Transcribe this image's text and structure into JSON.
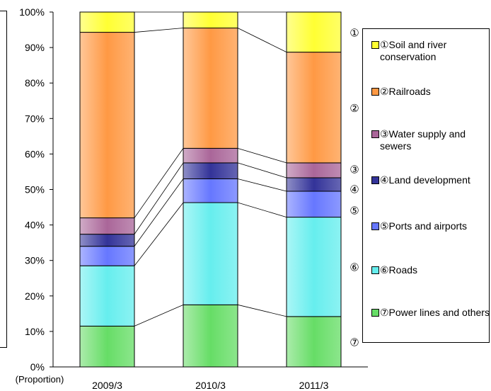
{
  "chart_data": {
    "type": "bar",
    "stacked": true,
    "normalized": true,
    "categories": [
      "2009/3",
      "2010/3",
      "2011/3"
    ],
    "ylim": [
      0,
      100
    ],
    "yticks": [
      "0%",
      "10%",
      "20%",
      "30%",
      "40%",
      "50%",
      "60%",
      "70%",
      "80%",
      "90%",
      "100%"
    ],
    "ylabel": "(Proportion)",
    "series": [
      {
        "name": "⑦Power lines and others",
        "marker": "⑦",
        "color": "#66DD66",
        "values": [
          11.5,
          17.5,
          14.2
        ]
      },
      {
        "name": "⑥Roads",
        "marker": "⑥",
        "color": "#66EEEE",
        "values": [
          17.0,
          28.8,
          28.0
        ]
      },
      {
        "name": "⑤Ports and airports",
        "marker": "⑤",
        "color": "#6677FF",
        "values": [
          5.5,
          6.7,
          7.3
        ]
      },
      {
        "name": "④Land development",
        "marker": "④",
        "color": "#333399",
        "values": [
          3.4,
          4.5,
          3.8
        ]
      },
      {
        "name": "③Water supply and sewers",
        "marker": "③",
        "color": "#AA6699",
        "values": [
          4.6,
          4.1,
          4.2
        ]
      },
      {
        "name": "②Railroads",
        "marker": "②",
        "color": "#FF9944",
        "values": [
          52.3,
          33.9,
          31.2
        ]
      },
      {
        "name": "①Soil and river conservation",
        "marker": "①",
        "color": "#FFFF33",
        "values": [
          5.7,
          4.5,
          11.3
        ]
      }
    ],
    "legend_position": "right",
    "legend_order": [
      "①Soil and river conservation",
      "②Railroads",
      "③Water supply and sewers",
      "④Land development",
      "⑤Ports and airports",
      "⑥Roads",
      "⑦Power lines and others"
    ]
  }
}
